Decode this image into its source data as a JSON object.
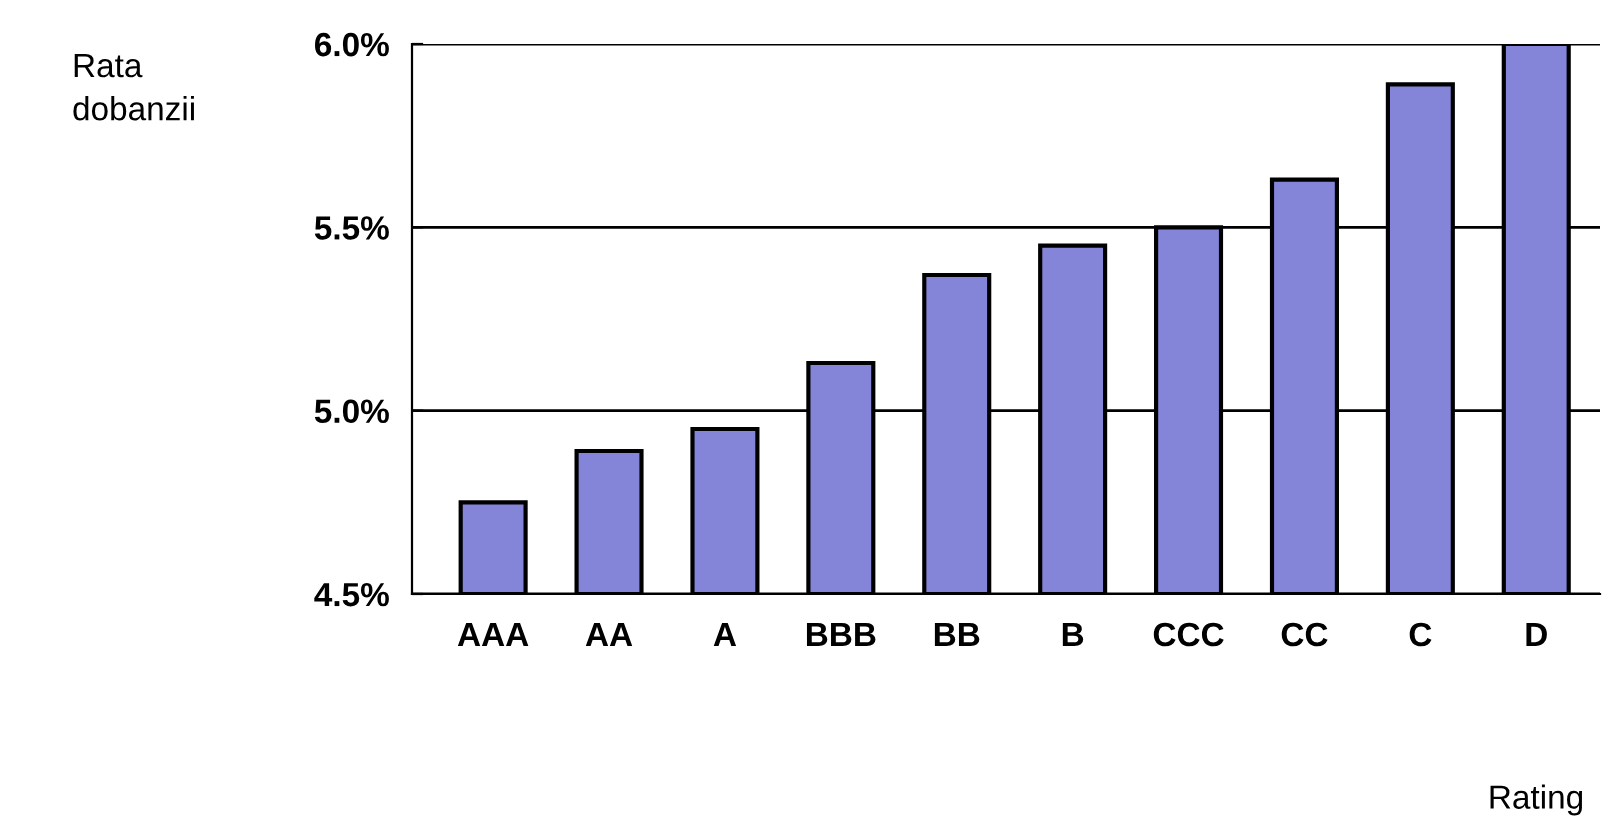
{
  "chart_data": {
    "type": "bar",
    "ylabel": "Rata\ndobanzii",
    "xlabel": "Rating",
    "categories": [
      "AAA",
      "AA",
      "A",
      "BBB",
      "BB",
      "B",
      "CCC",
      "CC",
      "C",
      "D"
    ],
    "values": [
      4.75,
      4.89,
      4.95,
      5.13,
      5.37,
      5.45,
      5.5,
      5.63,
      5.89,
      6.0
    ],
    "color": "#8484d8",
    "ylim": [
      4.5,
      6.0
    ],
    "yticks": [
      {
        "value": 4.5,
        "label": "4.5%"
      },
      {
        "value": 5.0,
        "label": "5.0%"
      },
      {
        "value": 5.5,
        "label": "5.5%"
      },
      {
        "value": 6.0,
        "label": "6.0%"
      }
    ],
    "grid": "y",
    "legend": false
  }
}
